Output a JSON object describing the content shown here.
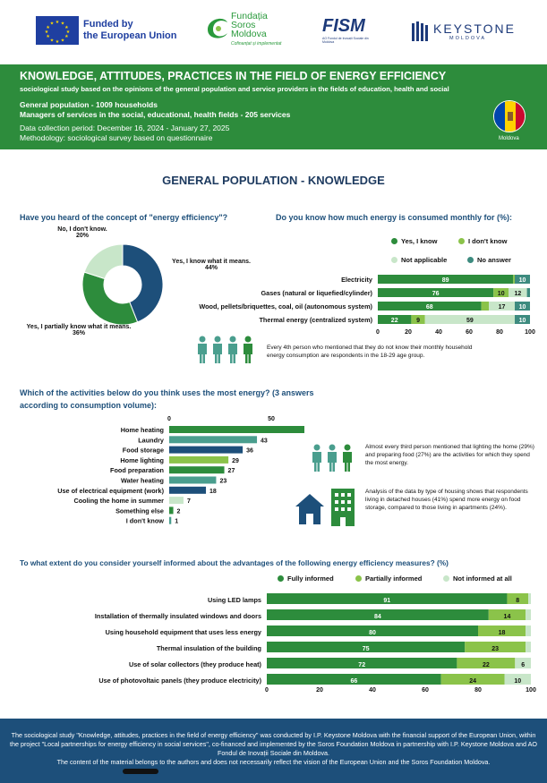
{
  "logos": {
    "eu_funded": "Funded by",
    "eu_union": "the European Union",
    "soros_line1": "Fundația",
    "soros_line2": "Soros",
    "soros_line3": "Moldova",
    "soros_tagline": "Cofinanțat și implementat",
    "fism": "FISM",
    "fism_sub": "AO Fondul de Inovații Sociale din Moldova",
    "keystone": "KEYSTONE",
    "keystone_sub": "MOLDOVA"
  },
  "banner": {
    "title": "KNOWLEDGE, ATTITUDES, PRACTICES IN THE FIELD OF ENERGY EFFICIENCY",
    "subtitle": "sociological study based on the opinions of the general population and service providers in the fields of education, health and social",
    "sample1": "General population - 1009 households",
    "sample2": "Managers of services in the social, educational, health fields - 205 services",
    "period": "Data collection period: December 16, 2024 - January 27, 2025",
    "method": "Methodology: sociological survey based on questionnaire",
    "country": "Moldova"
  },
  "section_title": "GENERAL POPULATION - KNOWLEDGE",
  "colors": {
    "dark_blue": "#1d4f7a",
    "green": "#2d8c3c",
    "light_green": "#8bc34a",
    "pale_green": "#c8e6c9",
    "teal": "#3d8b7f",
    "teal_light": "#4a9e8e"
  },
  "notes": {
    "energy_age": "Every 4th person who mentioned that they do not know their monthly household energy consumption are respondents in the 18-29 age group.",
    "lighting": "Almost every third person mentioned that lighting the home (29%) and preparing food (27%) are the activities for which they spend the most energy.",
    "housing": "Analysis of the data by type of housing shows that respondents living in detached houses (41%) spend more energy on food storage, compared to those living in apartments (24%)."
  },
  "footer": {
    "line1": "The sociological study \"Knowledge, attitudes, practices in the field of energy efficiency\" was conducted by I.P. Keystone Moldova with the financial support of the European Union, within the project \"Local partnerships for energy efficiency in social services\", co-financed and implemented by the Soros Foundation Moldova in partnership with I.P. Keystone Moldova and AO Fondul de Inovații Sociale din Moldova.",
    "line2": "The content of the material belongs to the authors and does not necessarily reflect the vision of the European Union and the Soros Foundation Moldova."
  },
  "chart_data": [
    {
      "type": "pie",
      "title": "Have you heard of the concept of \"energy efficiency\"?",
      "slices": [
        {
          "label": "Yes, I know what it means.",
          "value": 44,
          "color": "#1d4f7a"
        },
        {
          "label": "Yes, I partially know what it means.",
          "value": 36,
          "color": "#2d8c3c"
        },
        {
          "label": "No, I don't know.",
          "value": 20,
          "color": "#c8e6c9"
        }
      ]
    },
    {
      "type": "bar",
      "orientation": "horizontal",
      "stacked": true,
      "title": "Do you know how much energy is consumed monthly for (%):",
      "categories": [
        "Electricity",
        "Gases (natural or liquefied/cylinder)",
        "Wood, pellets/briquettes, coal, oil (autonomous system)",
        "Thermal energy (centralized system)"
      ],
      "series": [
        {
          "name": "Yes, I know",
          "color": "#2d8c3c",
          "values": [
            89,
            76,
            68,
            22
          ]
        },
        {
          "name": "I don't know",
          "color": "#8bc34a",
          "values": [
            1,
            10,
            5,
            9
          ]
        },
        {
          "name": "Not applicable",
          "color": "#c8e6c9",
          "values": [
            0,
            12,
            17,
            59
          ]
        },
        {
          "name": "No answer",
          "color": "#3d8b7f",
          "values": [
            10,
            2,
            10,
            10
          ]
        }
      ],
      "labels_shown": [
        [
          "89",
          "",
          "",
          "10"
        ],
        [
          "76",
          "10",
          "12",
          ""
        ],
        [
          "68",
          "",
          "17",
          "10"
        ],
        [
          "22",
          "9",
          "59",
          "10"
        ]
      ],
      "xlim": [
        0,
        100
      ],
      "xticks": [
        0,
        20,
        40,
        60,
        80,
        100
      ]
    },
    {
      "type": "bar",
      "orientation": "horizontal",
      "title": "Which of the activities below do you think uses the most energy? (3 answers according to consumption volume):",
      "categories": [
        "Home heating",
        "Laundry",
        "Food storage",
        "Home lighting",
        "Food preparation",
        "Water heating",
        "Use of electrical equipment (work)",
        "Cooling the home in summer",
        "Something else",
        "I don't know"
      ],
      "values": [
        69,
        43,
        36,
        29,
        27,
        23,
        18,
        7,
        2,
        1
      ],
      "colors": [
        "#2d8c3c",
        "#4a9e8e",
        "#1d4f7a",
        "#8bc34a",
        "#2d8c3c",
        "#4a9e8e",
        "#1d4f7a",
        "#c8e6c9",
        "#2d8c3c",
        "#4a9e8e"
      ],
      "xticks": [
        0,
        50
      ],
      "xlim": [
        0,
        75
      ]
    },
    {
      "type": "bar",
      "orientation": "horizontal",
      "stacked": true,
      "title": "To what extent do you consider yourself informed about the advantages of the following energy efficiency measures? (%)",
      "categories": [
        "Using LED lamps",
        "Installation of thermally insulated windows and doors",
        "Using household equipment that uses less energy",
        "Thermal insulation of the building",
        "Use of solar collectors (they produce heat)",
        "Use of photovoltaic panels (they produce electricity)"
      ],
      "series": [
        {
          "name": "Fully informed",
          "color": "#2d8c3c",
          "values": [
            91,
            84,
            80,
            75,
            72,
            66
          ]
        },
        {
          "name": "Partially informed",
          "color": "#8bc34a",
          "values": [
            8,
            14,
            18,
            23,
            22,
            24
          ]
        },
        {
          "name": "Not informed at all",
          "color": "#c8e6c9",
          "values": [
            1,
            2,
            2,
            2,
            6,
            10
          ]
        }
      ],
      "labels_shown": [
        [
          "91",
          "8",
          ""
        ],
        [
          "84",
          "14",
          ""
        ],
        [
          "80",
          "18",
          ""
        ],
        [
          "75",
          "23",
          ""
        ],
        [
          "72",
          "22",
          "6"
        ],
        [
          "66",
          "24",
          "10"
        ]
      ],
      "xlim": [
        0,
        100
      ],
      "xticks": [
        0,
        20,
        40,
        60,
        80,
        100
      ]
    }
  ]
}
